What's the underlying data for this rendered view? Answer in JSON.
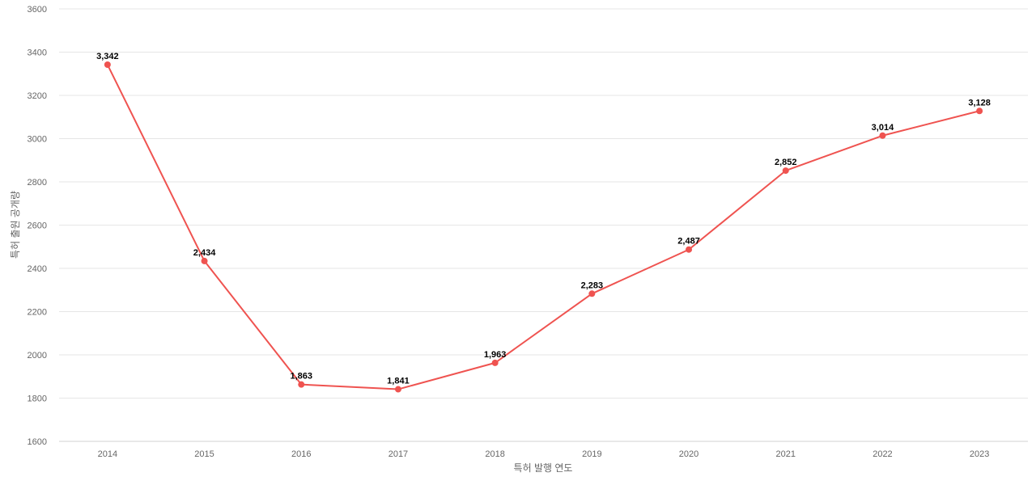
{
  "chart_data": {
    "type": "line",
    "title": "",
    "xlabel": "특허 발행 연도",
    "ylabel": "특허 출원 공개량",
    "categories": [
      "2014",
      "2015",
      "2016",
      "2017",
      "2018",
      "2019",
      "2020",
      "2021",
      "2022",
      "2023"
    ],
    "series": [
      {
        "values": [
          3342,
          2434,
          1863,
          1841,
          1963,
          2283,
          2487,
          2852,
          3014,
          3128
        ],
        "labels": [
          "3,342",
          "2,434",
          "1,863",
          "1,841",
          "1,963",
          "2,283",
          "2,487",
          "2,852",
          "3,014",
          "3,128"
        ],
        "color": "#ef5350"
      }
    ],
    "ylim": [
      1600,
      3600
    ],
    "yticks": [
      "1600",
      "1800",
      "2000",
      "2200",
      "2400",
      "2600",
      "2800",
      "3000",
      "3200",
      "3400",
      "3600"
    ],
    "grid": true,
    "legend": "none"
  }
}
